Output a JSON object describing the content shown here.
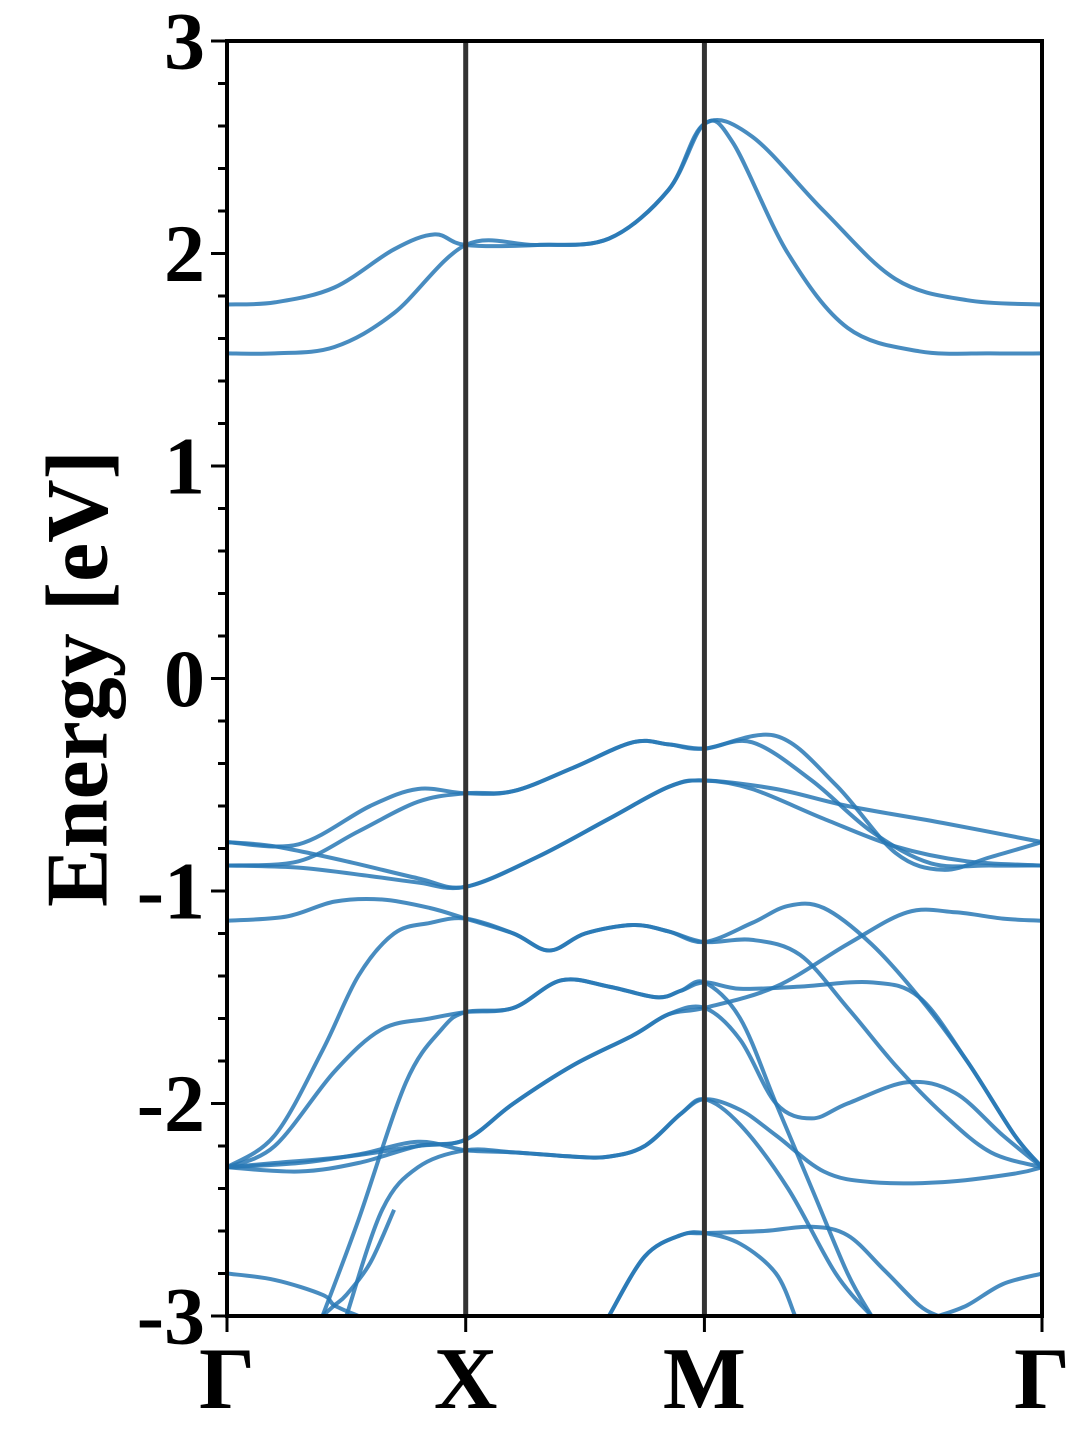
{
  "chart_data": {
    "type": "line",
    "ylabel": "Energy [eV]",
    "xlabel": "",
    "ylim": [
      -3,
      3
    ],
    "yticks": [
      "-3",
      "-2",
      "-1",
      "0",
      "1",
      "2",
      "3"
    ],
    "y_minor_step": 0.2,
    "kpoints": [
      {
        "label": "Γ",
        "x": 0.0
      },
      {
        "label": "X",
        "x": 1.0
      },
      {
        "label": "M",
        "x": 2.0
      },
      {
        "label": "Γ",
        "x": 3.4142
      }
    ],
    "xlim": [
      0,
      3.4142
    ],
    "colors": {
      "band": "#2878b5",
      "divider": "#333333",
      "axis": "#000000"
    },
    "series": [
      {
        "values": [
          [
            0,
            1.53
          ],
          [
            0.2,
            1.53
          ],
          [
            0.45,
            1.56
          ],
          [
            0.7,
            1.72
          ],
          [
            1.0,
            2.04
          ],
          [
            1.3,
            2.04
          ],
          [
            1.6,
            2.07
          ],
          [
            1.85,
            2.3
          ],
          [
            2.0,
            2.61
          ],
          [
            2.12,
            2.52
          ],
          [
            2.35,
            2.0
          ],
          [
            2.6,
            1.65
          ],
          [
            2.9,
            1.54
          ],
          [
            3.2,
            1.53
          ],
          [
            3.4142,
            1.53
          ]
        ]
      },
      {
        "values": [
          [
            0,
            1.76
          ],
          [
            0.2,
            1.77
          ],
          [
            0.45,
            1.84
          ],
          [
            0.7,
            2.02
          ],
          [
            0.87,
            2.09
          ],
          [
            1.0,
            2.04
          ],
          [
            1.3,
            2.04
          ],
          [
            1.6,
            2.07
          ],
          [
            1.85,
            2.3
          ],
          [
            2.0,
            2.61
          ],
          [
            2.2,
            2.55
          ],
          [
            2.5,
            2.2
          ],
          [
            2.8,
            1.88
          ],
          [
            3.1,
            1.78
          ],
          [
            3.4142,
            1.76
          ]
        ]
      },
      {
        "values": [
          [
            0,
            -0.77
          ],
          [
            0.3,
            -0.78
          ],
          [
            0.6,
            -0.6
          ],
          [
            0.8,
            -0.52
          ],
          [
            1.0,
            -0.54
          ],
          [
            1.2,
            -0.53
          ],
          [
            1.45,
            -0.42
          ],
          [
            1.7,
            -0.3
          ],
          [
            1.85,
            -0.31
          ],
          [
            2.0,
            -0.33
          ],
          [
            2.3,
            -0.27
          ],
          [
            2.55,
            -0.5
          ],
          [
            2.8,
            -0.82
          ],
          [
            3.0,
            -0.9
          ],
          [
            3.2,
            -0.84
          ],
          [
            3.4142,
            -0.77
          ]
        ]
      },
      {
        "values": [
          [
            0,
            -0.88
          ],
          [
            0.3,
            -0.86
          ],
          [
            0.55,
            -0.72
          ],
          [
            0.8,
            -0.58
          ],
          [
            1.0,
            -0.54
          ],
          [
            1.2,
            -0.53
          ],
          [
            1.45,
            -0.42
          ],
          [
            1.7,
            -0.3
          ],
          [
            1.85,
            -0.31
          ],
          [
            2.0,
            -0.33
          ],
          [
            2.2,
            -0.3
          ],
          [
            2.45,
            -0.48
          ],
          [
            2.7,
            -0.72
          ],
          [
            2.95,
            -0.87
          ],
          [
            3.2,
            -0.88
          ],
          [
            3.4142,
            -0.88
          ]
        ]
      },
      {
        "values": [
          [
            0,
            -0.77
          ],
          [
            0.2,
            -0.79
          ],
          [
            0.5,
            -0.86
          ],
          [
            0.8,
            -0.94
          ],
          [
            1.0,
            -0.98
          ],
          [
            1.3,
            -0.84
          ],
          [
            1.6,
            -0.66
          ],
          [
            1.85,
            -0.51
          ],
          [
            2.0,
            -0.48
          ],
          [
            2.3,
            -0.52
          ],
          [
            2.6,
            -0.6
          ],
          [
            3.0,
            -0.68
          ],
          [
            3.4142,
            -0.77
          ]
        ]
      },
      {
        "values": [
          [
            0,
            -0.88
          ],
          [
            0.3,
            -0.89
          ],
          [
            0.6,
            -0.93
          ],
          [
            0.8,
            -0.96
          ],
          [
            1.0,
            -0.98
          ],
          [
            1.3,
            -0.84
          ],
          [
            1.6,
            -0.66
          ],
          [
            1.85,
            -0.51
          ],
          [
            2.0,
            -0.48
          ],
          [
            2.2,
            -0.52
          ],
          [
            2.5,
            -0.66
          ],
          [
            2.8,
            -0.79
          ],
          [
            3.1,
            -0.86
          ],
          [
            3.4142,
            -0.88
          ]
        ]
      },
      {
        "values": [
          [
            0,
            -1.14
          ],
          [
            0.25,
            -1.12
          ],
          [
            0.45,
            -1.05
          ],
          [
            0.65,
            -1.04
          ],
          [
            0.85,
            -1.08
          ],
          [
            1.0,
            -1.13
          ],
          [
            1.2,
            -1.2
          ],
          [
            1.35,
            -1.28
          ],
          [
            1.5,
            -1.2
          ],
          [
            1.7,
            -1.16
          ],
          [
            1.85,
            -1.19
          ],
          [
            2.0,
            -1.24
          ],
          [
            2.2,
            -1.15
          ],
          [
            2.35,
            -1.07
          ],
          [
            2.5,
            -1.08
          ],
          [
            2.7,
            -1.25
          ],
          [
            2.9,
            -1.5
          ],
          [
            3.1,
            -1.8
          ],
          [
            3.3,
            -2.15
          ],
          [
            3.4142,
            -2.3
          ]
        ]
      },
      {
        "values": [
          [
            0,
            -2.3
          ],
          [
            0.2,
            -2.15
          ],
          [
            0.4,
            -1.75
          ],
          [
            0.55,
            -1.4
          ],
          [
            0.7,
            -1.2
          ],
          [
            0.85,
            -1.15
          ],
          [
            1.0,
            -1.13
          ],
          [
            1.2,
            -1.2
          ],
          [
            1.35,
            -1.28
          ],
          [
            1.5,
            -1.2
          ],
          [
            1.7,
            -1.16
          ],
          [
            1.85,
            -1.19
          ],
          [
            2.0,
            -1.24
          ],
          [
            2.2,
            -1.23
          ],
          [
            2.4,
            -1.3
          ],
          [
            2.6,
            -1.55
          ],
          [
            2.8,
            -1.82
          ],
          [
            3.0,
            -2.05
          ],
          [
            3.2,
            -2.23
          ],
          [
            3.4142,
            -2.3
          ]
        ]
      },
      {
        "values": [
          [
            0,
            -2.3
          ],
          [
            0.2,
            -2.2
          ],
          [
            0.45,
            -1.85
          ],
          [
            0.65,
            -1.65
          ],
          [
            0.85,
            -1.6
          ],
          [
            1.0,
            -1.57
          ],
          [
            1.2,
            -1.55
          ],
          [
            1.4,
            -1.42
          ],
          [
            1.6,
            -1.45
          ],
          [
            1.8,
            -1.5
          ],
          [
            1.9,
            -1.47
          ],
          [
            2.0,
            -1.43
          ],
          [
            2.15,
            -1.46
          ],
          [
            2.4,
            -1.45
          ],
          [
            2.7,
            -1.43
          ],
          [
            2.9,
            -1.5
          ],
          [
            3.1,
            -1.8
          ],
          [
            3.3,
            -2.15
          ],
          [
            3.4142,
            -2.3
          ]
        ]
      },
      {
        "values": [
          [
            0,
            -2.3
          ],
          [
            0.3,
            -2.32
          ],
          [
            0.55,
            -2.28
          ],
          [
            0.8,
            -2.2
          ],
          [
            1.0,
            -2.17
          ],
          [
            1.2,
            -2.0
          ],
          [
            1.45,
            -1.82
          ],
          [
            1.7,
            -1.68
          ],
          [
            1.85,
            -1.58
          ],
          [
            2.0,
            -1.55
          ],
          [
            2.15,
            -1.7
          ],
          [
            2.3,
            -2.0
          ],
          [
            2.45,
            -2.07
          ],
          [
            2.6,
            -2.0
          ],
          [
            2.85,
            -1.9
          ],
          [
            3.05,
            -1.95
          ],
          [
            3.25,
            -2.15
          ],
          [
            3.4142,
            -2.3
          ]
        ]
      },
      {
        "values": [
          [
            0,
            -2.3
          ],
          [
            0.2,
            -2.28
          ],
          [
            0.5,
            -2.25
          ],
          [
            0.8,
            -2.2
          ],
          [
            1.0,
            -2.17
          ],
          [
            1.2,
            -2.0
          ],
          [
            1.45,
            -1.82
          ],
          [
            1.7,
            -1.68
          ],
          [
            1.85,
            -1.58
          ],
          [
            2.0,
            -1.55
          ],
          [
            2.3,
            -1.45
          ],
          [
            2.6,
            -1.25
          ],
          [
            2.85,
            -1.1
          ],
          [
            3.05,
            -1.1
          ],
          [
            3.25,
            -1.13
          ],
          [
            3.4142,
            -1.14
          ]
        ]
      },
      {
        "values": [
          [
            0,
            -2.3
          ],
          [
            0.3,
            -2.28
          ],
          [
            0.55,
            -2.24
          ],
          [
            0.8,
            -2.18
          ],
          [
            1.0,
            -2.22
          ],
          [
            1.2,
            -2.23
          ],
          [
            1.45,
            -2.25
          ],
          [
            1.6,
            -2.25
          ],
          [
            1.75,
            -2.2
          ],
          [
            1.9,
            -2.05
          ],
          [
            2.0,
            -1.98
          ],
          [
            2.15,
            -2.03
          ],
          [
            2.3,
            -2.15
          ],
          [
            2.5,
            -2.32
          ],
          [
            2.7,
            -2.37
          ],
          [
            3.0,
            -2.37
          ],
          [
            3.3,
            -2.33
          ],
          [
            3.4142,
            -2.3
          ]
        ]
      },
      {
        "values": [
          [
            0.5,
            -3.0
          ],
          [
            0.65,
            -2.5
          ],
          [
            0.8,
            -2.3
          ],
          [
            1.0,
            -2.22
          ],
          [
            1.2,
            -2.23
          ],
          [
            1.45,
            -2.25
          ],
          [
            1.6,
            -2.25
          ],
          [
            1.75,
            -2.2
          ],
          [
            1.9,
            -2.05
          ],
          [
            2.0,
            -1.98
          ],
          [
            2.15,
            -2.1
          ],
          [
            2.35,
            -2.4
          ],
          [
            2.55,
            -2.8
          ],
          [
            2.7,
            -3.0
          ]
        ]
      },
      {
        "values": [
          [
            0.4,
            -3.0
          ],
          [
            0.55,
            -2.55
          ],
          [
            0.75,
            -1.9
          ],
          [
            0.9,
            -1.65
          ],
          [
            1.0,
            -1.57
          ],
          [
            1.2,
            -1.55
          ],
          [
            1.4,
            -1.42
          ],
          [
            1.6,
            -1.45
          ],
          [
            1.8,
            -1.5
          ],
          [
            1.9,
            -1.47
          ],
          [
            2.0,
            -1.43
          ],
          [
            2.15,
            -1.6
          ],
          [
            2.3,
            -2.0
          ],
          [
            2.45,
            -2.4
          ],
          [
            2.6,
            -2.8
          ],
          [
            2.7,
            -3.0
          ]
        ]
      },
      {
        "values": [
          [
            0,
            -2.8
          ],
          [
            0.2,
            -2.83
          ],
          [
            0.4,
            -2.9
          ],
          [
            0.45,
            -2.95
          ],
          [
            0.55,
            -3.0
          ]
        ]
      },
      {
        "values": [
          [
            0.4,
            -3.0
          ],
          [
            0.45,
            -2.95
          ],
          [
            0.5,
            -2.9
          ],
          [
            0.6,
            -2.75
          ],
          [
            0.7,
            -2.5
          ]
        ]
      },
      {
        "values": [
          [
            1.6,
            -3.0
          ],
          [
            1.75,
            -2.72
          ],
          [
            1.9,
            -2.62
          ],
          [
            2.0,
            -2.61
          ],
          [
            2.25,
            -2.6
          ],
          [
            2.45,
            -2.58
          ],
          [
            2.6,
            -2.62
          ],
          [
            2.75,
            -2.78
          ],
          [
            2.9,
            -2.95
          ],
          [
            2.98,
            -3.0
          ]
        ]
      },
      {
        "values": [
          [
            2.98,
            -3.0
          ],
          [
            3.1,
            -2.95
          ],
          [
            3.25,
            -2.85
          ],
          [
            3.4142,
            -2.8
          ]
        ]
      },
      {
        "values": [
          [
            1.6,
            -3.0
          ],
          [
            1.75,
            -2.72
          ],
          [
            1.9,
            -2.62
          ],
          [
            2.0,
            -2.61
          ],
          [
            2.15,
            -2.66
          ],
          [
            2.3,
            -2.8
          ],
          [
            2.38,
            -3.0
          ]
        ]
      }
    ]
  }
}
